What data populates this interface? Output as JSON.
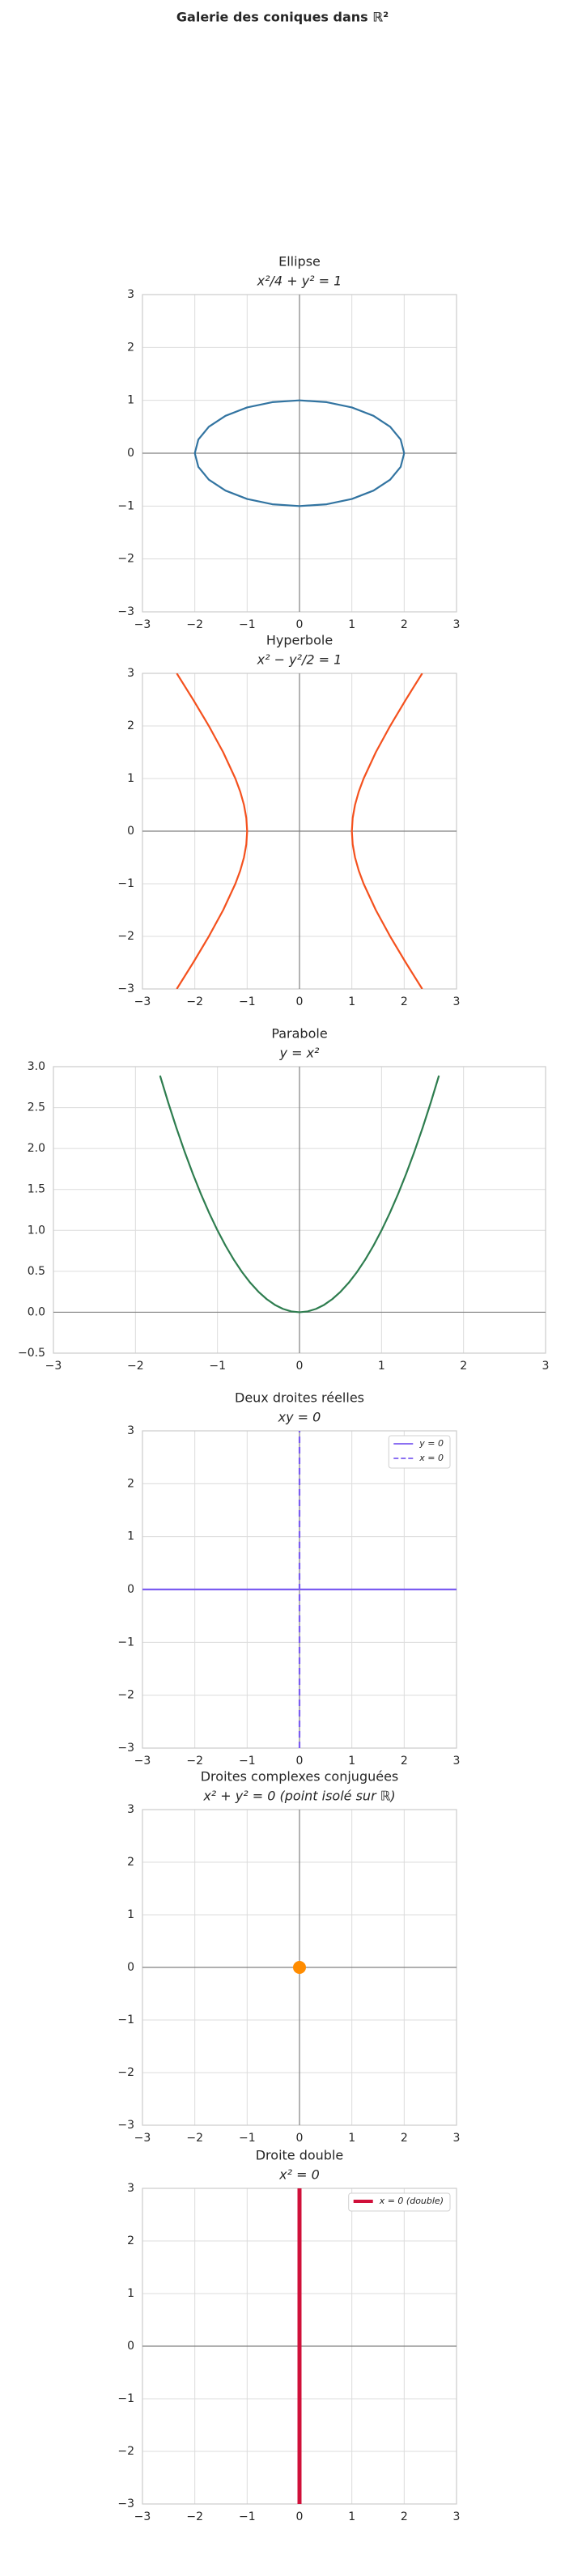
{
  "title": "Galerie des coniques dans ℝ²",
  "chart_data": [
    {
      "type": "line",
      "title": "Ellipse",
      "subtitle": "x²/4 + y² = 1",
      "grid": true,
      "hline": 0,
      "vline": 0,
      "xlim": [
        -3,
        3
      ],
      "ylim": [
        -3,
        3
      ],
      "xticks": [
        {
          "value": -3,
          "label": "−3"
        },
        {
          "value": -2,
          "label": "−2"
        },
        {
          "value": -1,
          "label": "−1"
        },
        0,
        1,
        2,
        3
      ],
      "yticks": [
        {
          "value": -3,
          "label": "−3"
        },
        {
          "value": -2,
          "label": "−2"
        },
        {
          "value": -1,
          "label": "−1"
        },
        0,
        1,
        2,
        3
      ],
      "series": [
        {
          "color": "#3274a1",
          "x": [
            2,
            1.932,
            1.732,
            1.414,
            1,
            0.518,
            0,
            -0.518,
            -1,
            -1.414,
            -1.732,
            -1.932,
            -2,
            -1.932,
            -1.732,
            -1.414,
            -1,
            -0.518,
            0,
            0.518,
            1,
            1.414,
            1.732,
            1.932,
            2
          ],
          "values": [
            0,
            0.259,
            0.5,
            0.707,
            0.866,
            0.966,
            1,
            0.966,
            0.866,
            0.707,
            0.5,
            0.259,
            0,
            -0.259,
            -0.5,
            -0.707,
            -0.866,
            -0.966,
            -1,
            -0.966,
            -0.866,
            -0.707,
            -0.5,
            -0.259,
            0
          ]
        }
      ]
    },
    {
      "type": "line",
      "title": "Hyperbole",
      "subtitle": "x² − y²/2 = 1",
      "grid": true,
      "hline": 0,
      "vline": 0,
      "xlim": [
        -3,
        3
      ],
      "ylim": [
        -3,
        3
      ],
      "xticks": [
        {
          "value": -3,
          "label": "−3"
        },
        {
          "value": -2,
          "label": "−2"
        },
        {
          "value": -1,
          "label": "−1"
        },
        0,
        1,
        2,
        3
      ],
      "yticks": [
        {
          "value": -3,
          "label": "−3"
        },
        {
          "value": -2,
          "label": "−2"
        },
        {
          "value": -1,
          "label": "−1"
        },
        0,
        1,
        2,
        3
      ],
      "series": [
        {
          "color": "#f4511e",
          "x": [
            2.345,
            2.031,
            1.732,
            1.458,
            1.225,
            1.132,
            1.061,
            1.016,
            1,
            1.016,
            1.061,
            1.132,
            1.225,
            1.458,
            1.732,
            2.031,
            2.345,
            null,
            -2.345,
            -2.031,
            -1.732,
            -1.458,
            -1.225,
            -1.132,
            -1.061,
            -1.016,
            -1,
            -1.016,
            -1.061,
            -1.132,
            -1.225,
            -1.458,
            -1.732,
            -2.031,
            -2.345
          ],
          "values": [
            -3,
            -2.5,
            -2,
            -1.5,
            -1,
            -0.75,
            -0.5,
            -0.25,
            0,
            0.25,
            0.5,
            0.75,
            1,
            1.5,
            2,
            2.5,
            3,
            null,
            -3,
            -2.5,
            -2,
            -1.5,
            -1,
            -0.75,
            -0.5,
            -0.25,
            0,
            0.25,
            0.5,
            0.75,
            1,
            1.5,
            2,
            2.5,
            3
          ]
        }
      ]
    },
    {
      "type": "line",
      "title": "Parabole",
      "subtitle": "y = x²",
      "grid": true,
      "hline": 0,
      "vline": 0,
      "xlim": [
        -3,
        3
      ],
      "ylim": [
        -0.5,
        3
      ],
      "xticks": [
        {
          "value": -3,
          "label": "−3"
        },
        {
          "value": -2,
          "label": "−2"
        },
        {
          "value": -1,
          "label": "−1"
        },
        0,
        1,
        2,
        3
      ],
      "yticks": [
        {
          "value": -0.5,
          "label": "−0.5"
        },
        {
          "value": 0,
          "label": "0.0"
        },
        0.5,
        {
          "value": 1,
          "label": "1.0"
        },
        1.5,
        {
          "value": 2,
          "label": "2.0"
        },
        2.5,
        {
          "value": 3,
          "label": "3.0"
        }
      ],
      "series": [
        {
          "color": "#2e7d4f",
          "x": [
            -1.7,
            -1.6,
            -1.5,
            -1.4,
            -1.3,
            -1.2,
            -1.1,
            -1.0,
            -0.9,
            -0.8,
            -0.7,
            -0.6,
            -0.5,
            -0.4,
            -0.3,
            -0.2,
            -0.1,
            0,
            0.1,
            0.2,
            0.3,
            0.4,
            0.5,
            0.6,
            0.7,
            0.8,
            0.9,
            1.0,
            1.1,
            1.2,
            1.3,
            1.4,
            1.5,
            1.6,
            1.7
          ],
          "values": [
            2.89,
            2.56,
            2.25,
            1.96,
            1.69,
            1.44,
            1.21,
            1.0,
            0.81,
            0.64,
            0.49,
            0.36,
            0.25,
            0.16,
            0.09,
            0.04,
            0.01,
            0,
            0.01,
            0.04,
            0.09,
            0.16,
            0.25,
            0.36,
            0.49,
            0.64,
            0.81,
            1.0,
            1.21,
            1.44,
            1.69,
            1.96,
            2.25,
            2.56,
            2.89
          ]
        }
      ]
    },
    {
      "type": "line",
      "title": "Deux droites réelles",
      "subtitle": "xy = 0",
      "grid": true,
      "hline": 0,
      "vline": 0,
      "legend": "upper right",
      "xlim": [
        -3,
        3
      ],
      "ylim": [
        -3,
        3
      ],
      "xticks": [
        {
          "value": -3,
          "label": "−3"
        },
        {
          "value": -2,
          "label": "−2"
        },
        {
          "value": -1,
          "label": "−1"
        },
        0,
        1,
        2,
        3
      ],
      "yticks": [
        {
          "value": -3,
          "label": "−3"
        },
        {
          "value": -2,
          "label": "−2"
        },
        {
          "value": -1,
          "label": "−1"
        },
        0,
        1,
        2,
        3
      ],
      "series": [
        {
          "name": "y = 0",
          "color": "#7b5cf0",
          "x": [
            -3,
            3
          ],
          "values": [
            0,
            0
          ]
        },
        {
          "name": "x = 0",
          "color": "#7b5cf0",
          "linestyle": "dashed",
          "x": [
            0,
            0
          ],
          "values": [
            -3,
            3
          ]
        }
      ]
    },
    {
      "type": "scatter",
      "title": "Droites complexes conjuguées",
      "subtitle": "x² + y² = 0 (point isolé sur ℝ)",
      "grid": true,
      "hline": 0,
      "vline": 0,
      "xlim": [
        -3,
        3
      ],
      "ylim": [
        -3,
        3
      ],
      "xticks": [
        {
          "value": -3,
          "label": "−3"
        },
        {
          "value": -2,
          "label": "−2"
        },
        {
          "value": -1,
          "label": "−1"
        },
        0,
        1,
        2,
        3
      ],
      "yticks": [
        {
          "value": -3,
          "label": "−3"
        },
        {
          "value": -2,
          "label": "−2"
        },
        {
          "value": -1,
          "label": "−1"
        },
        0,
        1,
        2,
        3
      ],
      "series": [
        {
          "color": "#ff8c00",
          "x": [
            0
          ],
          "values": [
            0
          ]
        }
      ]
    },
    {
      "type": "line",
      "title": "Droite double",
      "subtitle": "x² = 0",
      "grid": true,
      "hline": 0,
      "vline": 0,
      "legend": "upper right",
      "xlim": [
        -3,
        3
      ],
      "ylim": [
        -3,
        3
      ],
      "xticks": [
        {
          "value": -3,
          "label": "−3"
        },
        {
          "value": -2,
          "label": "−2"
        },
        {
          "value": -1,
          "label": "−1"
        },
        0,
        1,
        2,
        3
      ],
      "yticks": [
        {
          "value": -3,
          "label": "−3"
        },
        {
          "value": -2,
          "label": "−2"
        },
        {
          "value": -1,
          "label": "−1"
        },
        0,
        1,
        2,
        3
      ],
      "series": [
        {
          "name": "x = 0 (double)",
          "color": "#d0103a",
          "linewidth": 5,
          "x": [
            0,
            0
          ],
          "values": [
            -3,
            3
          ]
        }
      ]
    }
  ]
}
